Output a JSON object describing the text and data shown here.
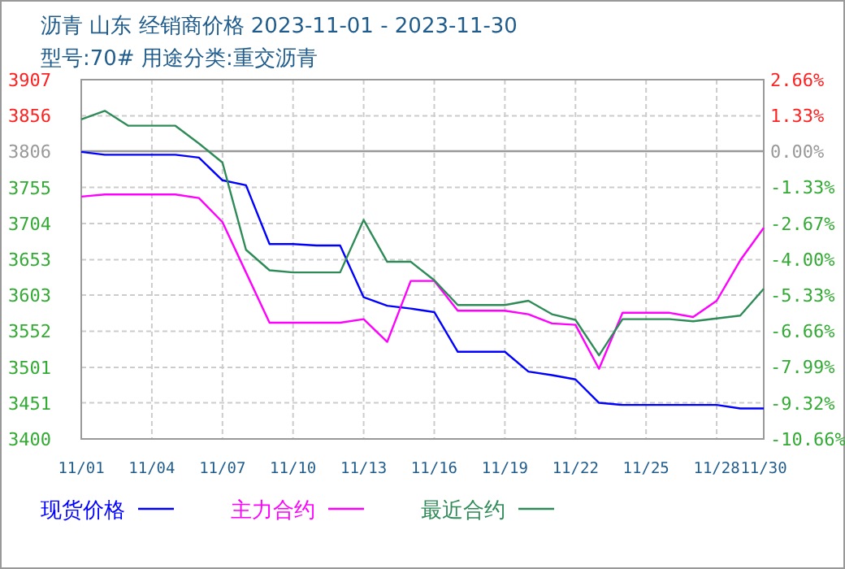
{
  "chart_data": {
    "type": "line",
    "title": "沥青  山东 经销商价格 2023-11-01 - 2023-11-30",
    "subtitle": "型号:70# 用途分类:重交沥青",
    "x": [
      "2023-11-01",
      "2023-11-02",
      "2023-11-03",
      "2023-11-04",
      "2023-11-05",
      "2023-11-06",
      "2023-11-07",
      "2023-11-08",
      "2023-11-09",
      "2023-11-10",
      "2023-11-11",
      "2023-11-12",
      "2023-11-13",
      "2023-11-14",
      "2023-11-15",
      "2023-11-16",
      "2023-11-17",
      "2023-11-18",
      "2023-11-19",
      "2023-11-20",
      "2023-11-21",
      "2023-11-22",
      "2023-11-23",
      "2023-11-24",
      "2023-11-25",
      "2023-11-26",
      "2023-11-27",
      "2023-11-28",
      "2023-11-29",
      "2023-11-30"
    ],
    "series": [
      {
        "name": "现货价格",
        "color": "#0000ff",
        "values": [
          3805,
          3801,
          3801,
          3801,
          3801,
          3797,
          3765,
          3758,
          3675,
          3675,
          3673,
          3673,
          3600,
          3588,
          3584,
          3579,
          3523,
          3523,
          3523,
          3495,
          3490,
          3484,
          3451,
          3448,
          3448,
          3448,
          3448,
          3448,
          3443,
          3443
        ]
      },
      {
        "name": "主力合约",
        "color": "#ff00ff",
        "values": [
          3742,
          3745,
          3745,
          3745,
          3745,
          3740,
          3706,
          3635,
          3564,
          3564,
          3564,
          3564,
          3569,
          3537,
          3623,
          3623,
          3581,
          3581,
          3581,
          3576,
          3563,
          3561,
          3499,
          3578,
          3578,
          3578,
          3572,
          3595,
          3652,
          3698
        ]
      },
      {
        "name": "最近合约",
        "color": "#2e8b57",
        "values": [
          3851,
          3863,
          3842,
          3842,
          3842,
          3817,
          3790,
          3667,
          3638,
          3635,
          3635,
          3635,
          3709,
          3650,
          3650,
          3624,
          3589,
          3589,
          3589,
          3595,
          3576,
          3568,
          3518,
          3569,
          3569,
          3569,
          3566,
          3570,
          3574,
          3612
        ]
      }
    ],
    "xlim": [
      "2023-11-01",
      "2023-11-30"
    ],
    "xticks": [
      {
        "value": "2023-11-01",
        "label": "11/01"
      },
      {
        "value": "2023-11-04",
        "label": "11/04"
      },
      {
        "value": "2023-11-07",
        "label": "11/07"
      },
      {
        "value": "2023-11-10",
        "label": "11/10"
      },
      {
        "value": "2023-11-13",
        "label": "11/13"
      },
      {
        "value": "2023-11-16",
        "label": "11/16"
      },
      {
        "value": "2023-11-19",
        "label": "11/19"
      },
      {
        "value": "2023-11-22",
        "label": "11/22"
      },
      {
        "value": "2023-11-25",
        "label": "11/25"
      },
      {
        "value": "2023-11-28",
        "label": "11/28"
      },
      {
        "value": "2023-11-30",
        "label": "11/30"
      }
    ],
    "ylim": [
      3400,
      3907
    ],
    "yticks": [
      3400,
      3451,
      3501,
      3552,
      3603,
      3653,
      3704,
      3755,
      3806,
      3856,
      3907
    ],
    "y2lim": [
      -10.66,
      2.66
    ],
    "y2ticks": [
      {
        "value": -10.66,
        "label": "-10.66%"
      },
      {
        "value": -9.32,
        "label": "-9.32%"
      },
      {
        "value": -7.99,
        "label": "-7.99%"
      },
      {
        "value": -6.66,
        "label": "-6.66%"
      },
      {
        "value": -5.33,
        "label": "-5.33%"
      },
      {
        "value": -4.0,
        "label": "-4.00%"
      },
      {
        "value": -2.67,
        "label": "-2.67%"
      },
      {
        "value": -1.33,
        "label": "-1.33%"
      },
      {
        "value": 0,
        "label": "0.00%"
      },
      {
        "value": 1.33,
        "label": "1.33%"
      },
      {
        "value": 2.66,
        "label": "2.66%"
      }
    ],
    "ref_lines": [
      {
        "axis": "y",
        "value": 3806,
        "color": "#999999"
      }
    ],
    "grid": true,
    "legend": "bottom",
    "marker": "none",
    "line_style": "solid"
  }
}
